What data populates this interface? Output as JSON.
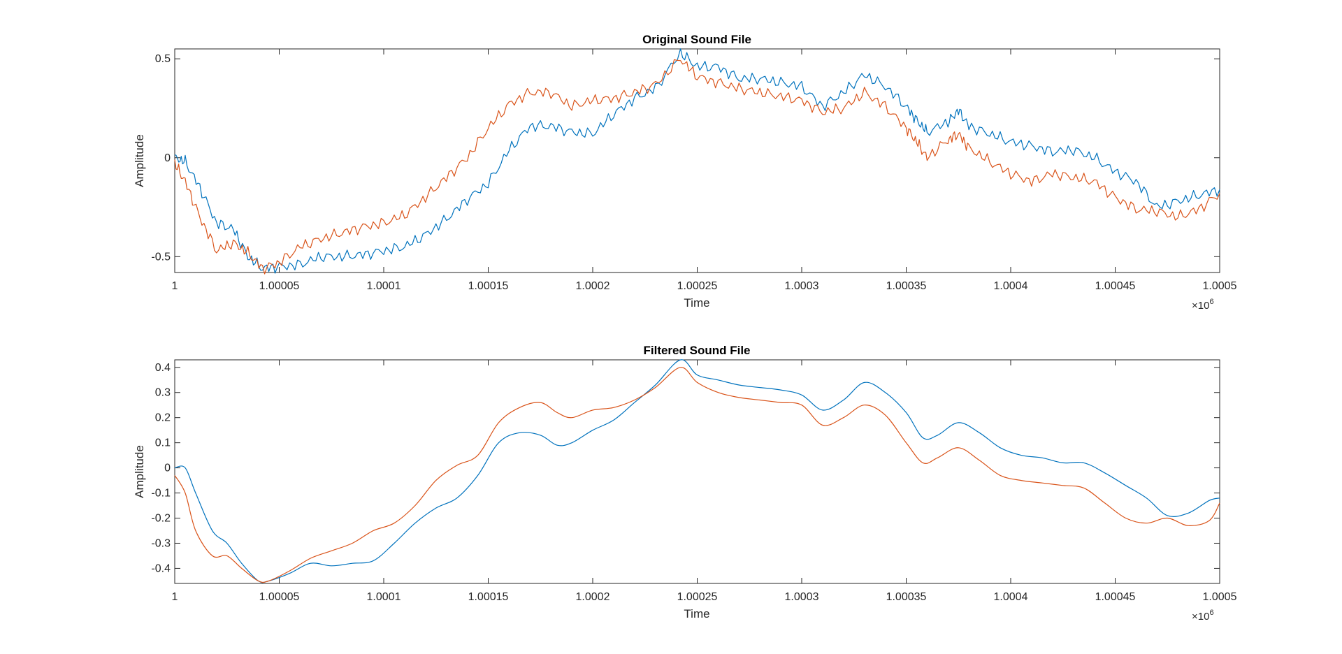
{
  "chart_data": [
    {
      "type": "line",
      "title": "Original Sound File",
      "xlabel": "Time",
      "ylabel": "Amplitude",
      "x_exponent_base": "×10",
      "x_exponent_power": "6",
      "xlim": [
        1.0,
        1.0005
      ],
      "ylim": [
        -0.58,
        0.55
      ],
      "x_ticks": [
        1.0,
        1.00005,
        1.0001,
        1.00015,
        1.0002,
        1.00025,
        1.0003,
        1.00035,
        1.0004,
        1.00045,
        1.0005
      ],
      "x_tick_labels": [
        "1",
        "1.00005",
        "1.0001",
        "1.00015",
        "1.0002",
        "1.00025",
        "1.0003",
        "1.00035",
        "1.0004",
        "1.00045",
        "1.0005"
      ],
      "y_ticks": [
        -0.5,
        0,
        0.5
      ],
      "y_tick_labels": [
        "-0.5",
        "0",
        "0.5"
      ],
      "grid": false,
      "colors": [
        "#0072BD",
        "#D95319"
      ],
      "series": [
        {
          "noise": true,
          "x": [
            1.0,
            1.000005,
            1.000012,
            1.00002,
            1.000028,
            1.000035,
            1.000042,
            1.00005,
            1.00006,
            1.00007,
            1.00008,
            1.00009,
            1.0001,
            1.00011,
            1.00012,
            1.00013,
            1.00014,
            1.00015,
            1.00016,
            1.00017,
            1.00018,
            1.00019,
            1.0002,
            1.00021,
            1.00022,
            1.00023,
            1.000242,
            1.00025,
            1.00026,
            1.00027,
            1.00028,
            1.00029,
            1.0003,
            1.00031,
            1.00032,
            1.00033,
            1.00034,
            1.00035,
            1.000355,
            1.00036,
            1.00037,
            1.000375,
            1.00038,
            1.00039,
            1.0004,
            1.00041,
            1.00042,
            1.00043,
            1.00044,
            1.00045,
            1.00046,
            1.00047,
            1.00048,
            1.00049,
            1.0005
          ],
          "y": [
            0.0,
            -0.02,
            -0.15,
            -0.33,
            -0.36,
            -0.5,
            -0.56,
            -0.55,
            -0.54,
            -0.5,
            -0.5,
            -0.49,
            -0.47,
            -0.45,
            -0.39,
            -0.31,
            -0.21,
            -0.13,
            0.04,
            0.16,
            0.16,
            0.13,
            0.12,
            0.22,
            0.3,
            0.35,
            0.53,
            0.46,
            0.46,
            0.4,
            0.4,
            0.38,
            0.36,
            0.26,
            0.33,
            0.42,
            0.36,
            0.26,
            0.19,
            0.13,
            0.18,
            0.24,
            0.16,
            0.12,
            0.08,
            0.06,
            0.03,
            0.04,
            0.0,
            -0.07,
            -0.12,
            -0.25,
            -0.22,
            -0.19,
            -0.16
          ]
        },
        {
          "noise": true,
          "x": [
            1.0,
            1.000005,
            1.000012,
            1.00002,
            1.000028,
            1.000035,
            1.000042,
            1.00005,
            1.00006,
            1.00007,
            1.00008,
            1.00009,
            1.0001,
            1.00011,
            1.00012,
            1.00013,
            1.00014,
            1.00015,
            1.00016,
            1.00017,
            1.00018,
            1.00019,
            1.0002,
            1.00021,
            1.00022,
            1.00023,
            1.000242,
            1.00025,
            1.00026,
            1.00027,
            1.00028,
            1.00029,
            1.0003,
            1.00031,
            1.00032,
            1.00033,
            1.00034,
            1.00035,
            1.000355,
            1.00036,
            1.00037,
            1.000375,
            1.00038,
            1.00039,
            1.0004,
            1.00041,
            1.00042,
            1.00043,
            1.00044,
            1.00045,
            1.00046,
            1.00047,
            1.00048,
            1.00049,
            1.0005
          ],
          "y": [
            -0.03,
            -0.12,
            -0.3,
            -0.47,
            -0.43,
            -0.48,
            -0.56,
            -0.53,
            -0.45,
            -0.41,
            -0.38,
            -0.35,
            -0.33,
            -0.29,
            -0.2,
            -0.1,
            0.0,
            0.15,
            0.27,
            0.33,
            0.33,
            0.26,
            0.29,
            0.3,
            0.33,
            0.37,
            0.5,
            0.41,
            0.38,
            0.35,
            0.33,
            0.31,
            0.29,
            0.23,
            0.25,
            0.33,
            0.26,
            0.15,
            0.08,
            0.0,
            0.09,
            0.12,
            0.05,
            -0.02,
            -0.08,
            -0.12,
            -0.08,
            -0.1,
            -0.12,
            -0.2,
            -0.26,
            -0.27,
            -0.3,
            -0.26,
            -0.18
          ]
        }
      ]
    },
    {
      "type": "line",
      "title": "Filtered Sound File",
      "xlabel": "Time",
      "ylabel": "Amplitude",
      "x_exponent_base": "×10",
      "x_exponent_power": "6",
      "xlim": [
        1.0,
        1.0005
      ],
      "ylim": [
        -0.46,
        0.43
      ],
      "x_ticks": [
        1.0,
        1.00005,
        1.0001,
        1.00015,
        1.0002,
        1.00025,
        1.0003,
        1.00035,
        1.0004,
        1.00045,
        1.0005
      ],
      "x_tick_labels": [
        "1",
        "1.00005",
        "1.0001",
        "1.00015",
        "1.0002",
        "1.00025",
        "1.0003",
        "1.00035",
        "1.0004",
        "1.00045",
        "1.0005"
      ],
      "y_ticks": [
        -0.4,
        -0.3,
        -0.2,
        -0.1,
        0,
        0.1,
        0.2,
        0.3,
        0.4
      ],
      "y_tick_labels": [
        "-0.4",
        "-0.3",
        "-0.2",
        "-0.1",
        "0",
        "0.1",
        "0.2",
        "0.3",
        "0.4"
      ],
      "grid": false,
      "colors": [
        "#0072BD",
        "#D95319"
      ],
      "series": [
        {
          "noise": false,
          "x": [
            1.0,
            1.000005,
            1.00001,
            1.000018,
            1.000025,
            1.000032,
            1.00004,
            1.000045,
            1.000055,
            1.000065,
            1.000075,
            1.000085,
            1.000095,
            1.000105,
            1.000115,
            1.000125,
            1.000135,
            1.000145,
            1.000155,
            1.000165,
            1.000175,
            1.000183,
            1.00019,
            1.0002,
            1.00021,
            1.00022,
            1.00023,
            1.000242,
            1.00025,
            1.00026,
            1.00027,
            1.00028,
            1.00029,
            1.0003,
            1.00031,
            1.00032,
            1.00033,
            1.00034,
            1.00035,
            1.000358,
            1.000365,
            1.000375,
            1.000385,
            1.000395,
            1.000405,
            1.000415,
            1.000425,
            1.000435,
            1.000445,
            1.000455,
            1.000465,
            1.000475,
            1.000485,
            1.000495,
            1.0005
          ],
          "y": [
            0.0,
            0.0,
            -0.1,
            -0.25,
            -0.3,
            -0.38,
            -0.45,
            -0.45,
            -0.42,
            -0.38,
            -0.39,
            -0.38,
            -0.37,
            -0.3,
            -0.22,
            -0.16,
            -0.12,
            -0.03,
            0.1,
            0.14,
            0.13,
            0.09,
            0.1,
            0.15,
            0.19,
            0.26,
            0.33,
            0.43,
            0.37,
            0.35,
            0.33,
            0.32,
            0.31,
            0.29,
            0.23,
            0.27,
            0.34,
            0.3,
            0.22,
            0.12,
            0.13,
            0.18,
            0.14,
            0.08,
            0.05,
            0.04,
            0.02,
            0.02,
            -0.02,
            -0.07,
            -0.12,
            -0.19,
            -0.18,
            -0.13,
            -0.12
          ]
        },
        {
          "noise": false,
          "x": [
            1.0,
            1.000005,
            1.00001,
            1.000018,
            1.000025,
            1.000032,
            1.00004,
            1.000045,
            1.000055,
            1.000065,
            1.000075,
            1.000085,
            1.000095,
            1.000105,
            1.000115,
            1.000125,
            1.000135,
            1.000145,
            1.000155,
            1.000165,
            1.000175,
            1.000183,
            1.00019,
            1.0002,
            1.00021,
            1.00022,
            1.00023,
            1.000242,
            1.00025,
            1.00026,
            1.00027,
            1.00028,
            1.00029,
            1.0003,
            1.00031,
            1.00032,
            1.00033,
            1.00034,
            1.00035,
            1.000358,
            1.000365,
            1.000375,
            1.000385,
            1.000395,
            1.000405,
            1.000415,
            1.000425,
            1.000435,
            1.000445,
            1.000455,
            1.000465,
            1.000475,
            1.000485,
            1.000495,
            1.0005
          ],
          "y": [
            -0.03,
            -0.1,
            -0.25,
            -0.35,
            -0.35,
            -0.4,
            -0.45,
            -0.45,
            -0.41,
            -0.36,
            -0.33,
            -0.3,
            -0.25,
            -0.22,
            -0.15,
            -0.05,
            0.01,
            0.05,
            0.18,
            0.24,
            0.26,
            0.22,
            0.2,
            0.23,
            0.24,
            0.27,
            0.32,
            0.4,
            0.34,
            0.3,
            0.28,
            0.27,
            0.26,
            0.25,
            0.17,
            0.2,
            0.25,
            0.21,
            0.1,
            0.02,
            0.04,
            0.08,
            0.03,
            -0.03,
            -0.05,
            -0.06,
            -0.07,
            -0.08,
            -0.14,
            -0.2,
            -0.22,
            -0.2,
            -0.23,
            -0.21,
            -0.14
          ]
        }
      ]
    }
  ]
}
